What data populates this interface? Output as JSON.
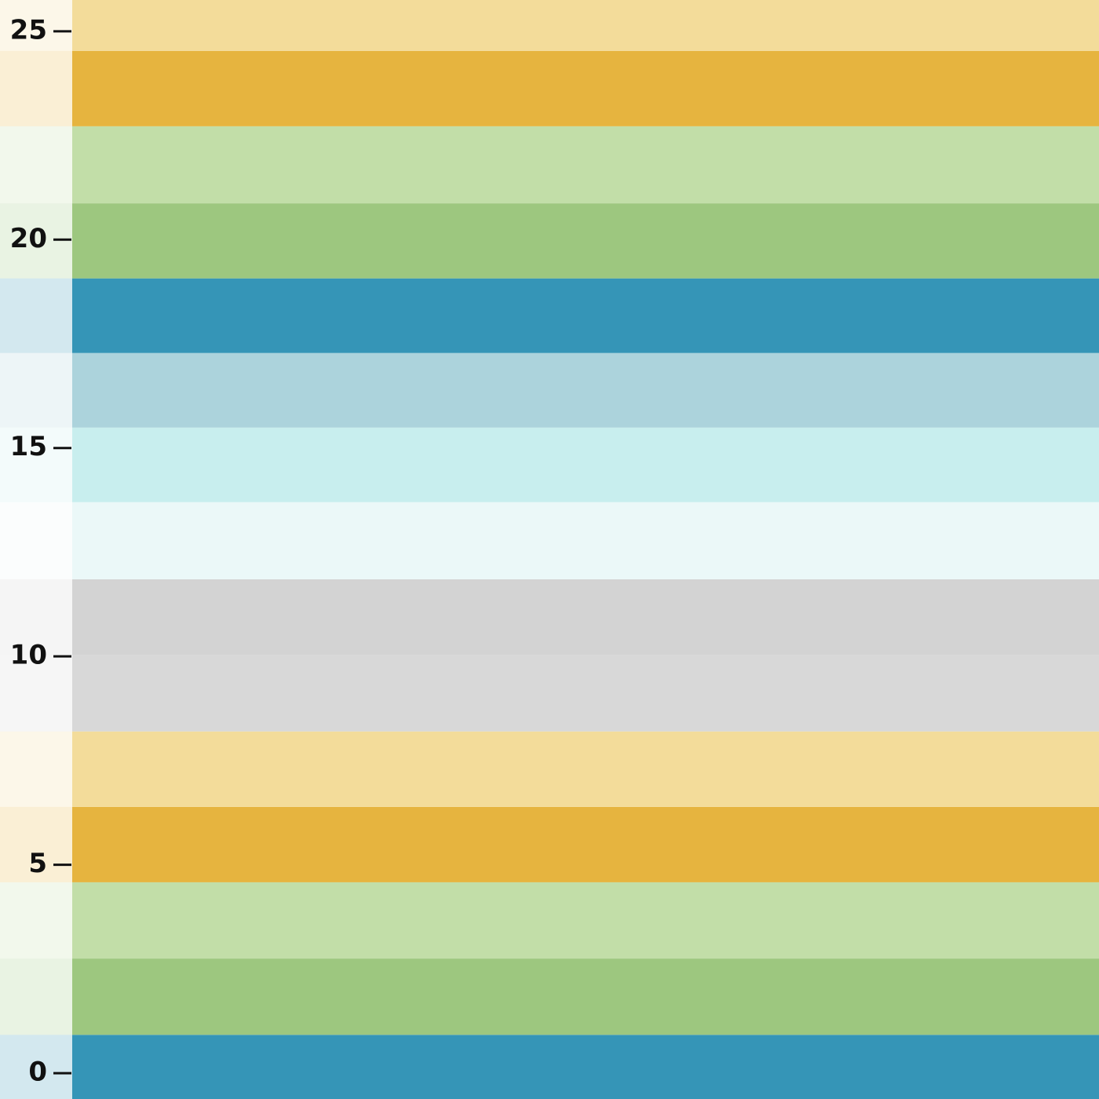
{
  "chart_data": {
    "type": "bands",
    "ylim": [
      -0.62,
      25.75
    ],
    "yticks": [
      0,
      5,
      10,
      15,
      20,
      25
    ],
    "bands": [
      {
        "from": -0.62,
        "to": 0.92,
        "color": "#3595b7"
      },
      {
        "from": 0.92,
        "to": 2.75,
        "color": "#9dc77f"
      },
      {
        "from": 2.75,
        "to": 4.58,
        "color": "#c2dea8"
      },
      {
        "from": 4.58,
        "to": 6.39,
        "color": "#e6b43f"
      },
      {
        "from": 6.39,
        "to": 8.2,
        "color": "#f3dc9a"
      },
      {
        "from": 8.2,
        "to": 10.04,
        "color": "#d8d8d8"
      },
      {
        "from": 10.04,
        "to": 11.85,
        "color": "#d3d3d3"
      },
      {
        "from": 11.85,
        "to": 13.7,
        "color": "#ebf8f8"
      },
      {
        "from": 13.7,
        "to": 15.49,
        "color": "#c8eeee"
      },
      {
        "from": 15.49,
        "to": 17.28,
        "color": "#acd3dc"
      },
      {
        "from": 17.28,
        "to": 19.07,
        "color": "#3595b7"
      },
      {
        "from": 19.07,
        "to": 20.87,
        "color": "#9dc77f"
      },
      {
        "from": 20.87,
        "to": 22.72,
        "color": "#c2dea8"
      },
      {
        "from": 22.72,
        "to": 24.53,
        "color": "#e6b43f"
      },
      {
        "from": 24.53,
        "to": 25.75,
        "color": "#f3dc9a"
      }
    ]
  }
}
